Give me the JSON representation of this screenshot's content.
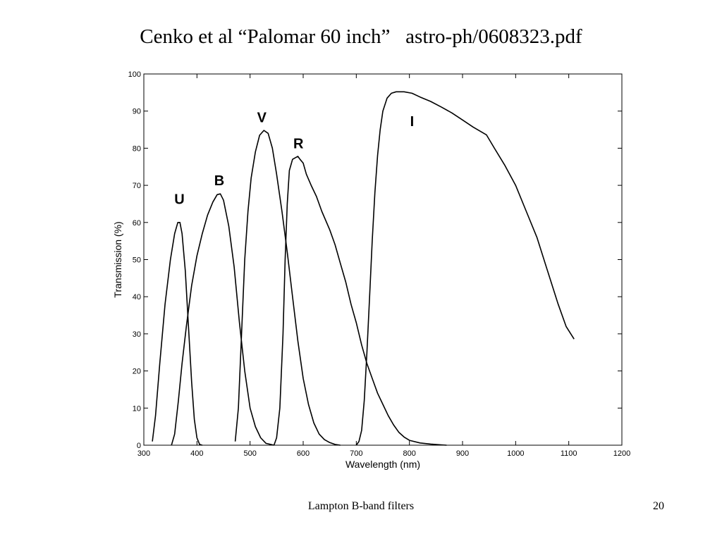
{
  "slide": {
    "title": "Cenko et al “Palomar 60 inch”   astro-ph/0608323.pdf",
    "footer": "Lampton B-band filters",
    "page_number": "20"
  },
  "chart_data": {
    "type": "line",
    "xlabel": "Wavelength (nm)",
    "ylabel": "Transmission (%)",
    "xlim": [
      300,
      1200
    ],
    "ylim": [
      0,
      100
    ],
    "xticks": [
      300,
      400,
      500,
      600,
      700,
      800,
      900,
      1000,
      1100,
      1200
    ],
    "yticks": [
      0,
      10,
      20,
      30,
      40,
      50,
      60,
      70,
      80,
      90,
      100
    ],
    "grid": false,
    "legend": "none",
    "series": [
      {
        "name": "U",
        "label_at": [
          367,
          65
        ],
        "points": [
          [
            316,
            1
          ],
          [
            322,
            8
          ],
          [
            330,
            22
          ],
          [
            340,
            38
          ],
          [
            350,
            50
          ],
          [
            358,
            57
          ],
          [
            364,
            60
          ],
          [
            368,
            60
          ],
          [
            372,
            57
          ],
          [
            378,
            47
          ],
          [
            384,
            32
          ],
          [
            390,
            17
          ],
          [
            395,
            7
          ],
          [
            400,
            2
          ],
          [
            405,
            0.2
          ],
          [
            410,
            0
          ]
        ]
      },
      {
        "name": "B",
        "label_at": [
          442,
          70
        ],
        "points": [
          [
            352,
            0
          ],
          [
            358,
            3
          ],
          [
            365,
            12
          ],
          [
            372,
            22
          ],
          [
            380,
            32
          ],
          [
            390,
            43
          ],
          [
            400,
            51
          ],
          [
            410,
            57
          ],
          [
            420,
            62
          ],
          [
            430,
            65.5
          ],
          [
            438,
            67.5
          ],
          [
            444,
            67.7
          ],
          [
            450,
            66
          ],
          [
            460,
            59
          ],
          [
            470,
            48
          ],
          [
            480,
            33
          ],
          [
            490,
            20
          ],
          [
            500,
            10
          ],
          [
            510,
            5
          ],
          [
            520,
            2
          ],
          [
            530,
            0.5
          ],
          [
            545,
            0
          ]
        ]
      },
      {
        "name": "V",
        "label_at": [
          522,
          87
        ],
        "points": [
          [
            472,
            1
          ],
          [
            478,
            10
          ],
          [
            484,
            30
          ],
          [
            490,
            50
          ],
          [
            496,
            63
          ],
          [
            502,
            72
          ],
          [
            510,
            79
          ],
          [
            518,
            83.5
          ],
          [
            526,
            84.8
          ],
          [
            534,
            84
          ],
          [
            542,
            80
          ],
          [
            550,
            73
          ],
          [
            560,
            63
          ],
          [
            570,
            52
          ],
          [
            580,
            40
          ],
          [
            590,
            28
          ],
          [
            600,
            18
          ],
          [
            610,
            11
          ],
          [
            620,
            6
          ],
          [
            630,
            3
          ],
          [
            640,
            1.5
          ],
          [
            650,
            0.7
          ],
          [
            660,
            0.2
          ],
          [
            670,
            0
          ]
        ]
      },
      {
        "name": "R",
        "label_at": [
          591,
          80
        ],
        "points": [
          [
            545,
            0
          ],
          [
            550,
            2
          ],
          [
            556,
            10
          ],
          [
            562,
            30
          ],
          [
            566,
            50
          ],
          [
            570,
            65
          ],
          [
            574,
            74
          ],
          [
            580,
            77
          ],
          [
            586,
            77.5
          ],
          [
            590,
            77.8
          ],
          [
            594,
            77
          ],
          [
            600,
            76
          ],
          [
            606,
            73
          ],
          [
            615,
            70
          ],
          [
            625,
            67
          ],
          [
            635,
            63
          ],
          [
            650,
            58
          ],
          [
            660,
            54
          ],
          [
            670,
            49
          ],
          [
            680,
            44
          ],
          [
            690,
            38
          ],
          [
            700,
            33
          ],
          [
            710,
            27
          ],
          [
            720,
            22
          ],
          [
            730,
            18
          ],
          [
            740,
            14
          ],
          [
            750,
            11
          ],
          [
            760,
            8
          ],
          [
            770,
            5.5
          ],
          [
            780,
            3.5
          ],
          [
            790,
            2.2
          ],
          [
            800,
            1.3
          ],
          [
            820,
            0.6
          ],
          [
            840,
            0.3
          ],
          [
            860,
            0.1
          ],
          [
            870,
            0
          ]
        ]
      },
      {
        "name": "I",
        "label_at": [
          805,
          86
        ],
        "points": [
          [
            700,
            0
          ],
          [
            705,
            1
          ],
          [
            710,
            4
          ],
          [
            715,
            12
          ],
          [
            720,
            25
          ],
          [
            725,
            40
          ],
          [
            730,
            55
          ],
          [
            735,
            68
          ],
          [
            740,
            78
          ],
          [
            745,
            85
          ],
          [
            750,
            90
          ],
          [
            758,
            93.5
          ],
          [
            766,
            94.8
          ],
          [
            775,
            95.2
          ],
          [
            790,
            95.2
          ],
          [
            805,
            94.8
          ],
          [
            820,
            93.8
          ],
          [
            840,
            92.6
          ],
          [
            860,
            91.1
          ],
          [
            880,
            89.5
          ],
          [
            900,
            87.6
          ],
          [
            920,
            85.7
          ],
          [
            945,
            83.6
          ],
          [
            960,
            80
          ],
          [
            980,
            75.3
          ],
          [
            1000,
            70
          ],
          [
            1020,
            63
          ],
          [
            1040,
            56
          ],
          [
            1060,
            47
          ],
          [
            1080,
            38
          ],
          [
            1095,
            32
          ],
          [
            1110,
            28.6
          ]
        ]
      }
    ]
  }
}
